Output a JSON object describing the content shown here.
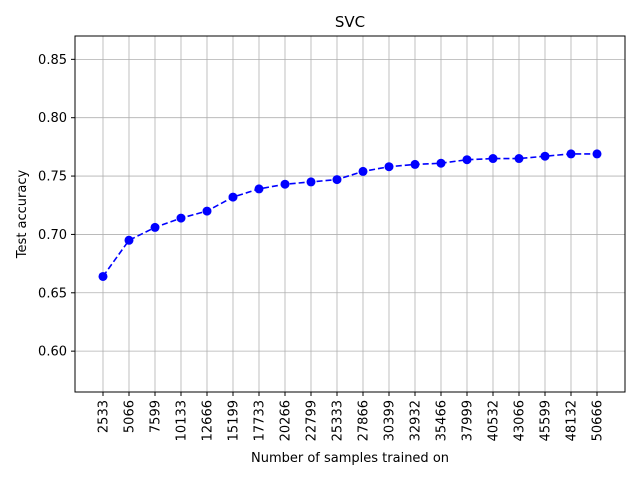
{
  "chart_data": {
    "type": "line",
    "title": "SVC",
    "xlabel": "Number of samples trained on",
    "ylabel": "Test accuracy",
    "ylim": [
      0.565,
      0.87
    ],
    "yticks": [
      "0.60",
      "0.65",
      "0.70",
      "0.75",
      "0.80",
      "0.85"
    ],
    "grid": true,
    "categories": [
      "2533",
      "5066",
      "7599",
      "10133",
      "12666",
      "15199",
      "17733",
      "20266",
      "22799",
      "25333",
      "27866",
      "30399",
      "32932",
      "35466",
      "37999",
      "40532",
      "43066",
      "45599",
      "48132",
      "50666"
    ],
    "series": [
      {
        "color": "#0000ff",
        "line_style": "dashed",
        "marker": "circle",
        "values": [
          0.664,
          0.695,
          0.706,
          0.714,
          0.72,
          0.732,
          0.739,
          0.743,
          0.745,
          0.747,
          0.754,
          0.758,
          0.76,
          0.761,
          0.764,
          0.765,
          0.765,
          0.767,
          0.769,
          0.769
        ]
      }
    ]
  }
}
